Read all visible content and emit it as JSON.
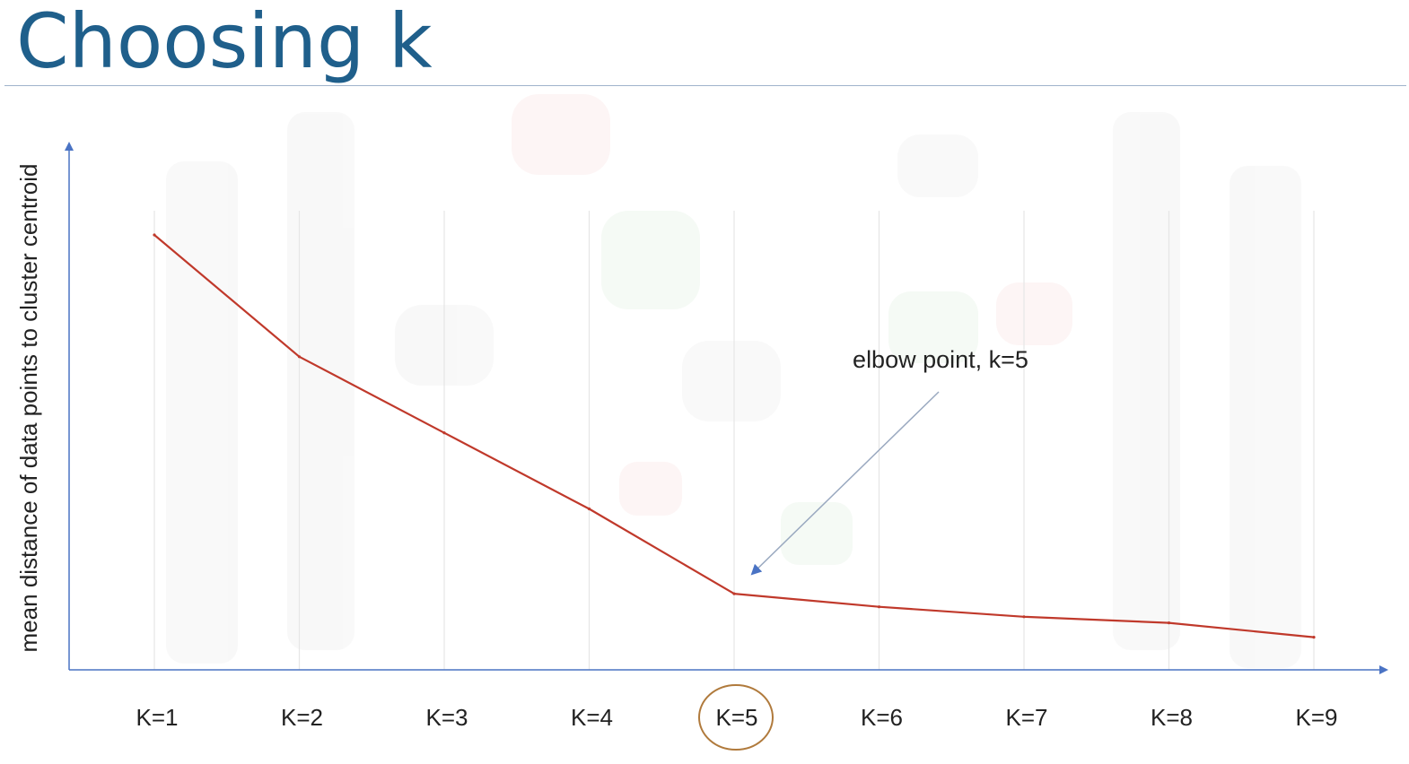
{
  "slide": {
    "title": "Choosing k"
  },
  "colors": {
    "title": "#1f5f8b",
    "axis": "#4a73c4",
    "line": "#c0392b",
    "gridline": "#e6e6e6",
    "annotation_arrow": "#9aa9c0",
    "highlight_circle": "#b07a3c",
    "text": "#222222"
  },
  "chart_data": {
    "type": "line",
    "title": "",
    "xlabel": "",
    "ylabel": "mean distance of data points to cluster centroid",
    "categories": [
      "K=1",
      "K=2",
      "K=3",
      "K=4",
      "K=5",
      "K=6",
      "K=7",
      "K=8",
      "K=9"
    ],
    "series": [
      {
        "values": [
          1.0,
          0.72,
          0.545,
          0.37,
          0.175,
          0.145,
          0.122,
          0.108,
          0.075
        ]
      }
    ],
    "ylim": [
      0,
      1.05
    ],
    "grid": "vertical",
    "annotation": {
      "text": "elbow point, k=5",
      "target_category": "K=5"
    },
    "highlighted_category": "K=5"
  }
}
